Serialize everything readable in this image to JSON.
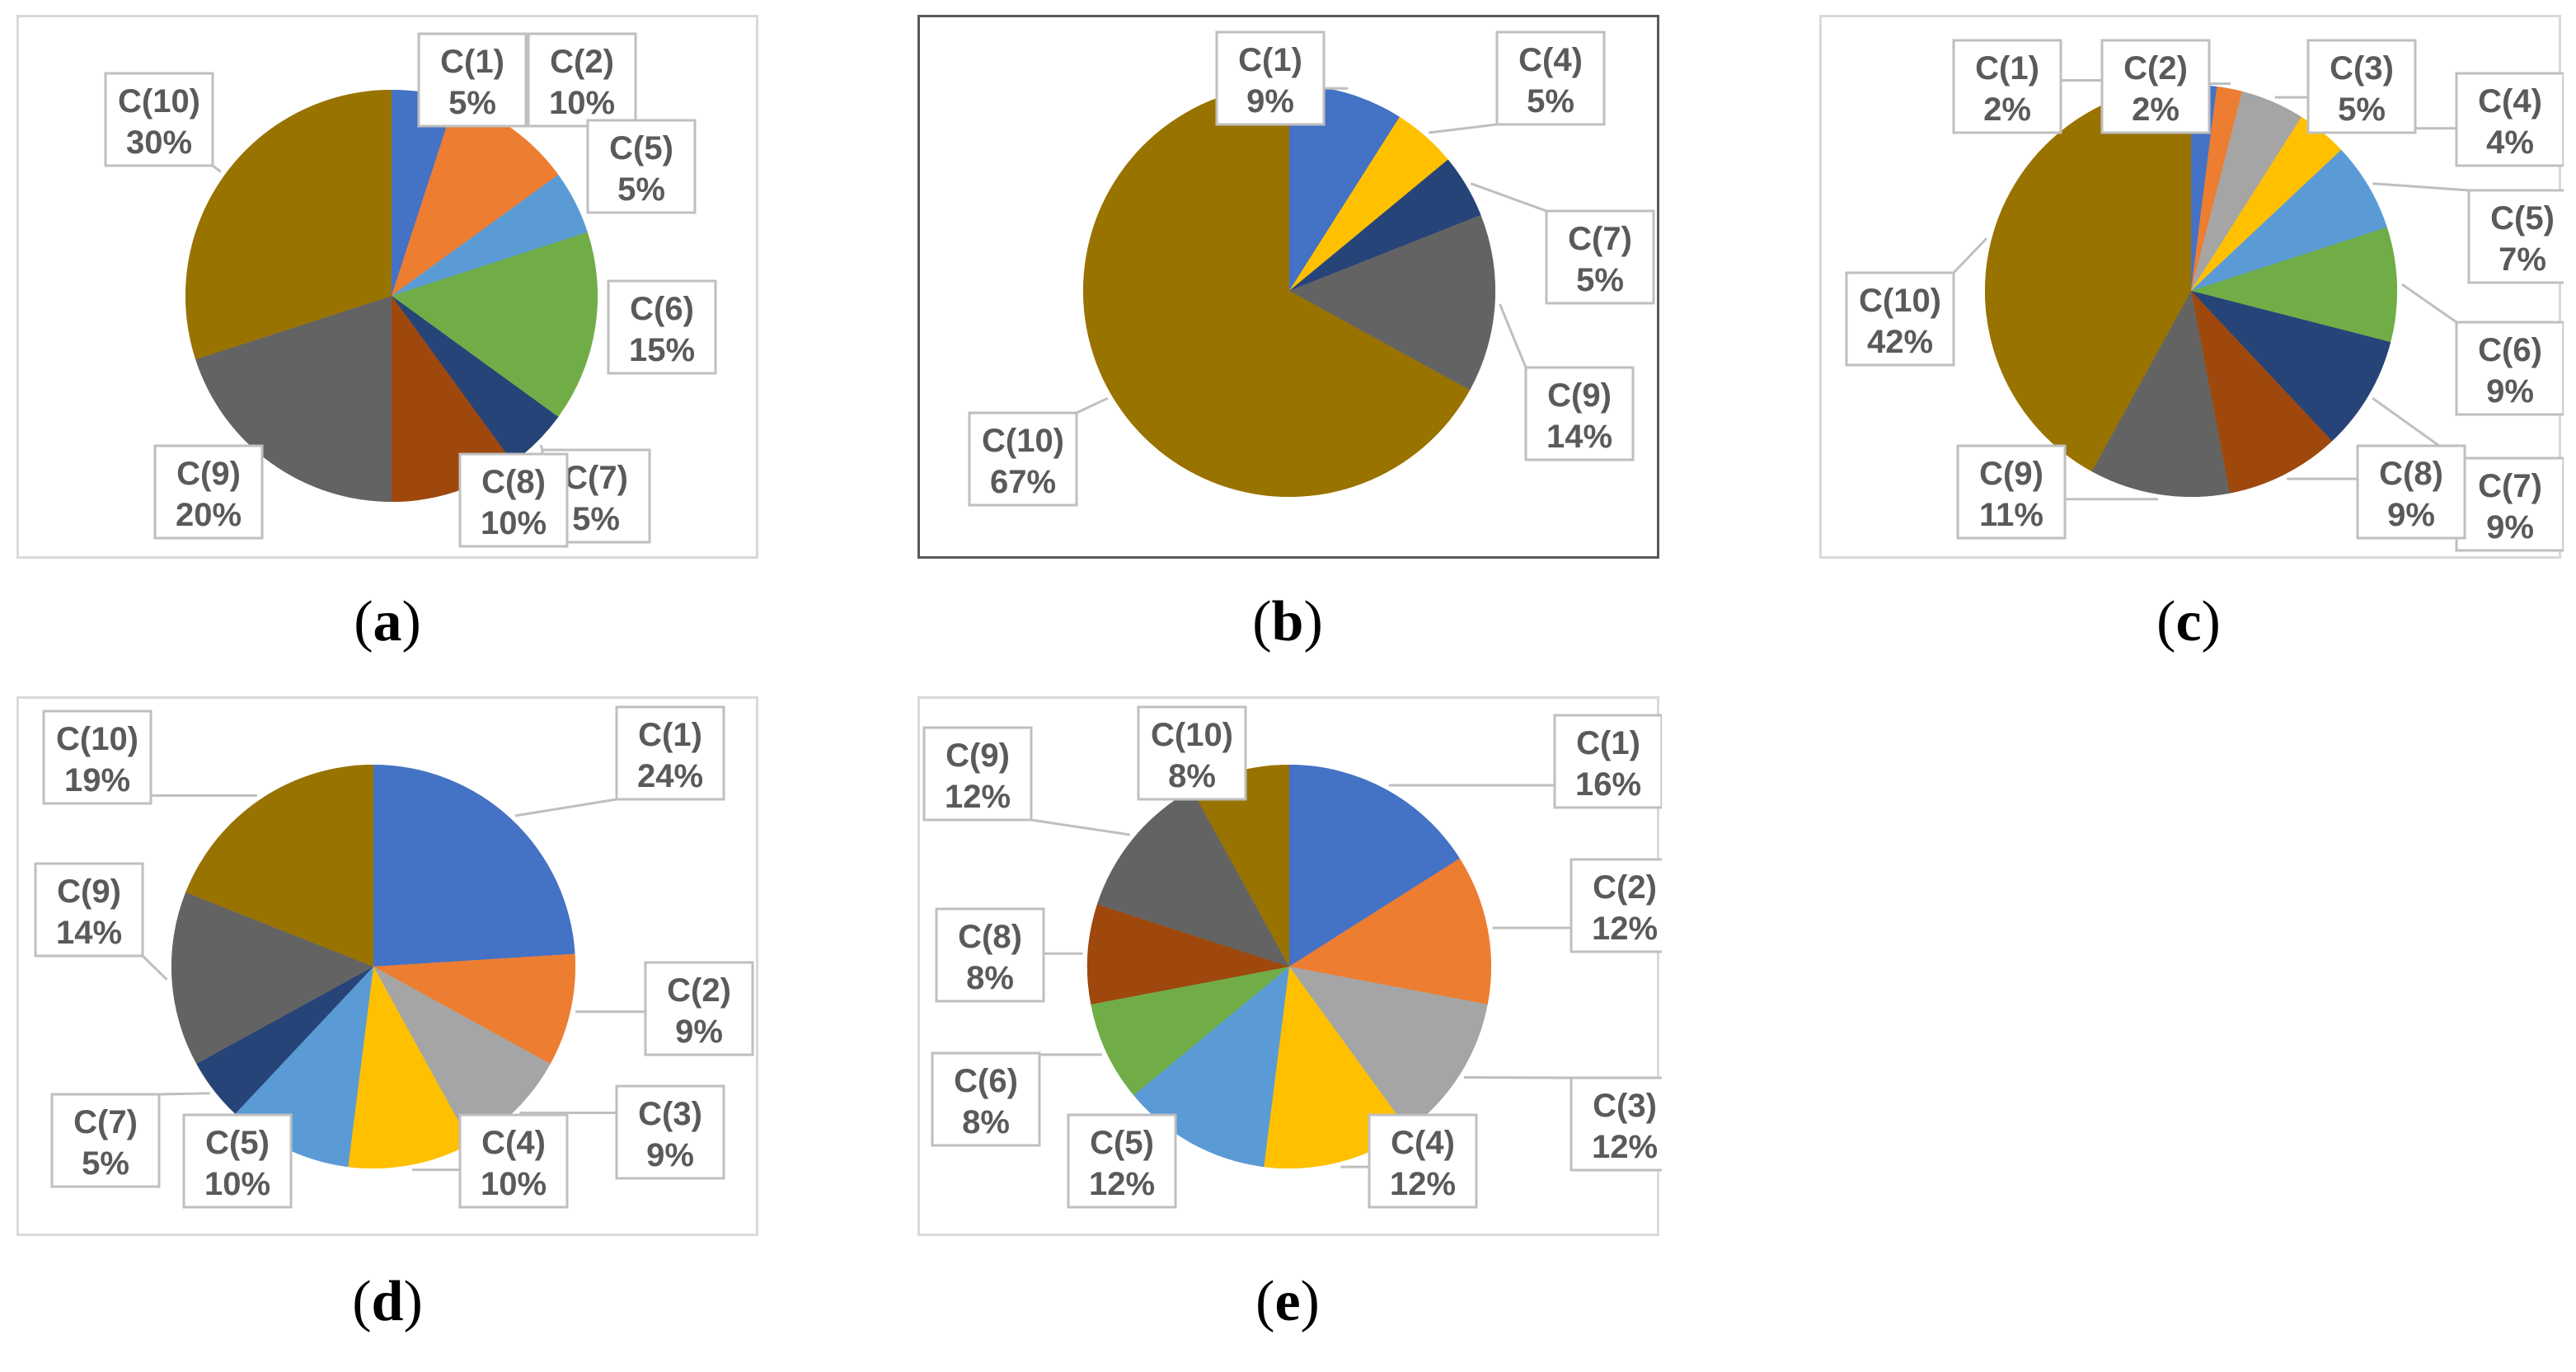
{
  "colors": {
    "C(1)": "#4472C4",
    "C(2)": "#ED7D31",
    "C(3)": "#A5A5A5",
    "C(4)": "#FFC000",
    "C(5)": "#5B9BD5",
    "C(6)": "#70AD47",
    "C(7)": "#264478",
    "C(8)": "#9E480E",
    "C(9)": "#636363",
    "C(10)": "#997300",
    "frame_border": "#d9d9d9",
    "frame_border_dark": "#595959",
    "label_border": "#bfbfbf"
  },
  "chart_data": [
    {
      "type": "pie",
      "caption_letter": "a",
      "slices": [
        {
          "label": "C(1)",
          "percent_label": "5%",
          "value": 5
        },
        {
          "label": "C(2)",
          "percent_label": "10%",
          "value": 10
        },
        {
          "label": "C(5)",
          "percent_label": "5%",
          "value": 5
        },
        {
          "label": "C(6)",
          "percent_label": "15%",
          "value": 15
        },
        {
          "label": "C(7)",
          "percent_label": "5%",
          "value": 5
        },
        {
          "label": "C(8)",
          "percent_label": "10%",
          "value": 10
        },
        {
          "label": "C(9)",
          "percent_label": "20%",
          "value": 20
        },
        {
          "label": "C(10)",
          "percent_label": "30%",
          "value": 30
        }
      ]
    },
    {
      "type": "pie",
      "caption_letter": "b",
      "slices": [
        {
          "label": "C(1)",
          "percent_label": "9%",
          "value": 9
        },
        {
          "label": "C(4)",
          "percent_label": "5%",
          "value": 5
        },
        {
          "label": "C(7)",
          "percent_label": "5%",
          "value": 5
        },
        {
          "label": "C(9)",
          "percent_label": "14%",
          "value": 14
        },
        {
          "label": "C(10)",
          "percent_label": "67%",
          "value": 67
        }
      ]
    },
    {
      "type": "pie",
      "caption_letter": "c",
      "slices": [
        {
          "label": "C(1)",
          "percent_label": "2%",
          "value": 2
        },
        {
          "label": "C(2)",
          "percent_label": "2%",
          "value": 2
        },
        {
          "label": "C(3)",
          "percent_label": "5%",
          "value": 5
        },
        {
          "label": "C(4)",
          "percent_label": "4%",
          "value": 4
        },
        {
          "label": "C(5)",
          "percent_label": "7%",
          "value": 7
        },
        {
          "label": "C(6)",
          "percent_label": "9%",
          "value": 9
        },
        {
          "label": "C(7)",
          "percent_label": "9%",
          "value": 9
        },
        {
          "label": "C(8)",
          "percent_label": "9%",
          "value": 9
        },
        {
          "label": "C(9)",
          "percent_label": "11%",
          "value": 11
        },
        {
          "label": "C(10)",
          "percent_label": "42%",
          "value": 42
        }
      ]
    },
    {
      "type": "pie",
      "caption_letter": "d",
      "slices": [
        {
          "label": "C(1)",
          "percent_label": "24%",
          "value": 24
        },
        {
          "label": "C(2)",
          "percent_label": "9%",
          "value": 9
        },
        {
          "label": "C(3)",
          "percent_label": "9%",
          "value": 9
        },
        {
          "label": "C(4)",
          "percent_label": "10%",
          "value": 10
        },
        {
          "label": "C(5)",
          "percent_label": "10%",
          "value": 10
        },
        {
          "label": "C(7)",
          "percent_label": "5%",
          "value": 5
        },
        {
          "label": "C(9)",
          "percent_label": "14%",
          "value": 14
        },
        {
          "label": "C(10)",
          "percent_label": "19%",
          "value": 19
        }
      ]
    },
    {
      "type": "pie",
      "caption_letter": "e",
      "slices": [
        {
          "label": "C(1)",
          "percent_label": "16%",
          "value": 16
        },
        {
          "label": "C(2)",
          "percent_label": "12%",
          "value": 12
        },
        {
          "label": "C(3)",
          "percent_label": "12%",
          "value": 12
        },
        {
          "label": "C(4)",
          "percent_label": "12%",
          "value": 12
        },
        {
          "label": "C(5)",
          "percent_label": "12%",
          "value": 12
        },
        {
          "label": "C(6)",
          "percent_label": "8%",
          "value": 8
        },
        {
          "label": "C(8)",
          "percent_label": "8%",
          "value": 8
        },
        {
          "label": "C(9)",
          "percent_label": "12%",
          "value": 12
        },
        {
          "label": "C(10)",
          "percent_label": "8%",
          "value": 8
        }
      ]
    }
  ]
}
